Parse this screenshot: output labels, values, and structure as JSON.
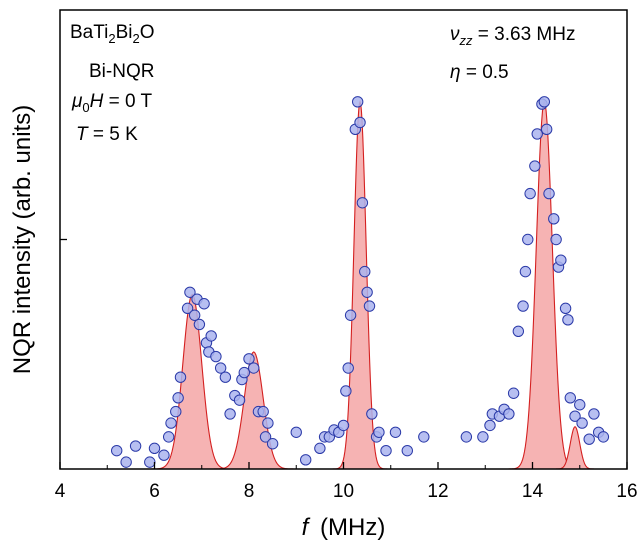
{
  "chart_data": {
    "type": "scatter",
    "xlabel_symbol": "f",
    "xlabel_unit": "(MHz)",
    "ylabel": "NQR intensity (arb. units)",
    "xlim": [
      4,
      16
    ],
    "xticks": [
      4,
      6,
      8,
      10,
      12,
      14,
      16
    ],
    "ylim": [
      0,
      1.0
    ],
    "yticks_labeled": false,
    "grid": false,
    "annotations_left": {
      "compound": {
        "base1": "BaTi",
        "sub1": "2",
        "base2": "Bi",
        "sub2": "2",
        "base3": "O"
      },
      "method": "Bi-NQR",
      "field": {
        "sym": "μ",
        "sub": "0",
        "sym2": "H",
        "rest": " = 0 T"
      },
      "temperature": {
        "sym": "T",
        "rest": " = 5 K"
      }
    },
    "annotations_right": {
      "nu": {
        "sym": "ν",
        "sub": "zz",
        "rest": " = 3.63 MHz"
      },
      "eta": {
        "sym": "η",
        "rest": " = 0.5"
      }
    },
    "colors": {
      "marker_fill": "#aab4ee",
      "marker_edge": "#2b3aa8",
      "fit_fill": "#f6b3b3",
      "fit_line": "#d42020",
      "axis": "#000000"
    },
    "fit_peaks": [
      {
        "center": 6.8,
        "sigma": 0.2,
        "amplitude": 0.38
      },
      {
        "center": 8.1,
        "sigma": 0.2,
        "amplitude": 0.255
      },
      {
        "center": 10.35,
        "sigma": 0.13,
        "amplitude": 0.8
      },
      {
        "center": 14.25,
        "sigma": 0.17,
        "amplitude": 0.8
      },
      {
        "center": 14.9,
        "sigma": 0.1,
        "amplitude": 0.092
      }
    ],
    "series": [
      {
        "points": [
          [
            5.2,
            0.04
          ],
          [
            5.4,
            0.015
          ],
          [
            5.6,
            0.05
          ],
          [
            5.9,
            0.015
          ],
          [
            6.0,
            0.045
          ],
          [
            6.2,
            0.03
          ],
          [
            6.3,
            0.07
          ],
          [
            6.35,
            0.1
          ],
          [
            6.45,
            0.125
          ],
          [
            6.5,
            0.155
          ],
          [
            6.55,
            0.2
          ],
          [
            6.7,
            0.35
          ],
          [
            6.75,
            0.385
          ],
          [
            6.85,
            0.335
          ],
          [
            6.9,
            0.37
          ],
          [
            6.95,
            0.315
          ],
          [
            7.05,
            0.36
          ],
          [
            7.1,
            0.275
          ],
          [
            7.15,
            0.255
          ],
          [
            7.2,
            0.29
          ],
          [
            7.3,
            0.245
          ],
          [
            7.4,
            0.22
          ],
          [
            7.5,
            0.2
          ],
          [
            7.6,
            0.12
          ],
          [
            7.7,
            0.16
          ],
          [
            7.8,
            0.15
          ],
          [
            7.85,
            0.195
          ],
          [
            7.9,
            0.21
          ],
          [
            8.0,
            0.24
          ],
          [
            8.1,
            0.22
          ],
          [
            8.2,
            0.125
          ],
          [
            8.3,
            0.125
          ],
          [
            8.35,
            0.07
          ],
          [
            8.4,
            0.1
          ],
          [
            8.5,
            0.055
          ],
          [
            9.0,
            0.08
          ],
          [
            9.2,
            0.02
          ],
          [
            9.5,
            0.045
          ],
          [
            9.6,
            0.07
          ],
          [
            9.7,
            0.07
          ],
          [
            9.8,
            0.085
          ],
          [
            9.9,
            0.08
          ],
          [
            10.0,
            0.095
          ],
          [
            10.05,
            0.17
          ],
          [
            10.1,
            0.22
          ],
          [
            10.15,
            0.335
          ],
          [
            10.25,
            0.74
          ],
          [
            10.3,
            0.8
          ],
          [
            10.35,
            0.755
          ],
          [
            10.4,
            0.58
          ],
          [
            10.45,
            0.43
          ],
          [
            10.5,
            0.385
          ],
          [
            10.55,
            0.355
          ],
          [
            10.6,
            0.12
          ],
          [
            10.7,
            0.07
          ],
          [
            10.75,
            0.08
          ],
          [
            10.9,
            0.04
          ],
          [
            11.1,
            0.08
          ],
          [
            11.35,
            0.04
          ],
          [
            11.7,
            0.07
          ],
          [
            12.6,
            0.07
          ],
          [
            12.95,
            0.07
          ],
          [
            13.1,
            0.095
          ],
          [
            13.15,
            0.12
          ],
          [
            13.3,
            0.115
          ],
          [
            13.4,
            0.13
          ],
          [
            13.5,
            0.12
          ],
          [
            13.6,
            0.165
          ],
          [
            13.7,
            0.3
          ],
          [
            13.8,
            0.355
          ],
          [
            13.85,
            0.43
          ],
          [
            13.9,
            0.5
          ],
          [
            13.95,
            0.6
          ],
          [
            14.05,
            0.66
          ],
          [
            14.1,
            0.73
          ],
          [
            14.2,
            0.795
          ],
          [
            14.25,
            0.8
          ],
          [
            14.3,
            0.74
          ],
          [
            14.35,
            0.6
          ],
          [
            14.45,
            0.545
          ],
          [
            14.5,
            0.5
          ],
          [
            14.55,
            0.44
          ],
          [
            14.6,
            0.455
          ],
          [
            14.7,
            0.35
          ],
          [
            14.75,
            0.325
          ],
          [
            14.8,
            0.155
          ],
          [
            14.9,
            0.115
          ],
          [
            15.0,
            0.14
          ],
          [
            15.05,
            0.1
          ],
          [
            15.2,
            0.065
          ],
          [
            15.3,
            0.12
          ],
          [
            15.4,
            0.08
          ],
          [
            15.5,
            0.07
          ]
        ]
      }
    ]
  }
}
